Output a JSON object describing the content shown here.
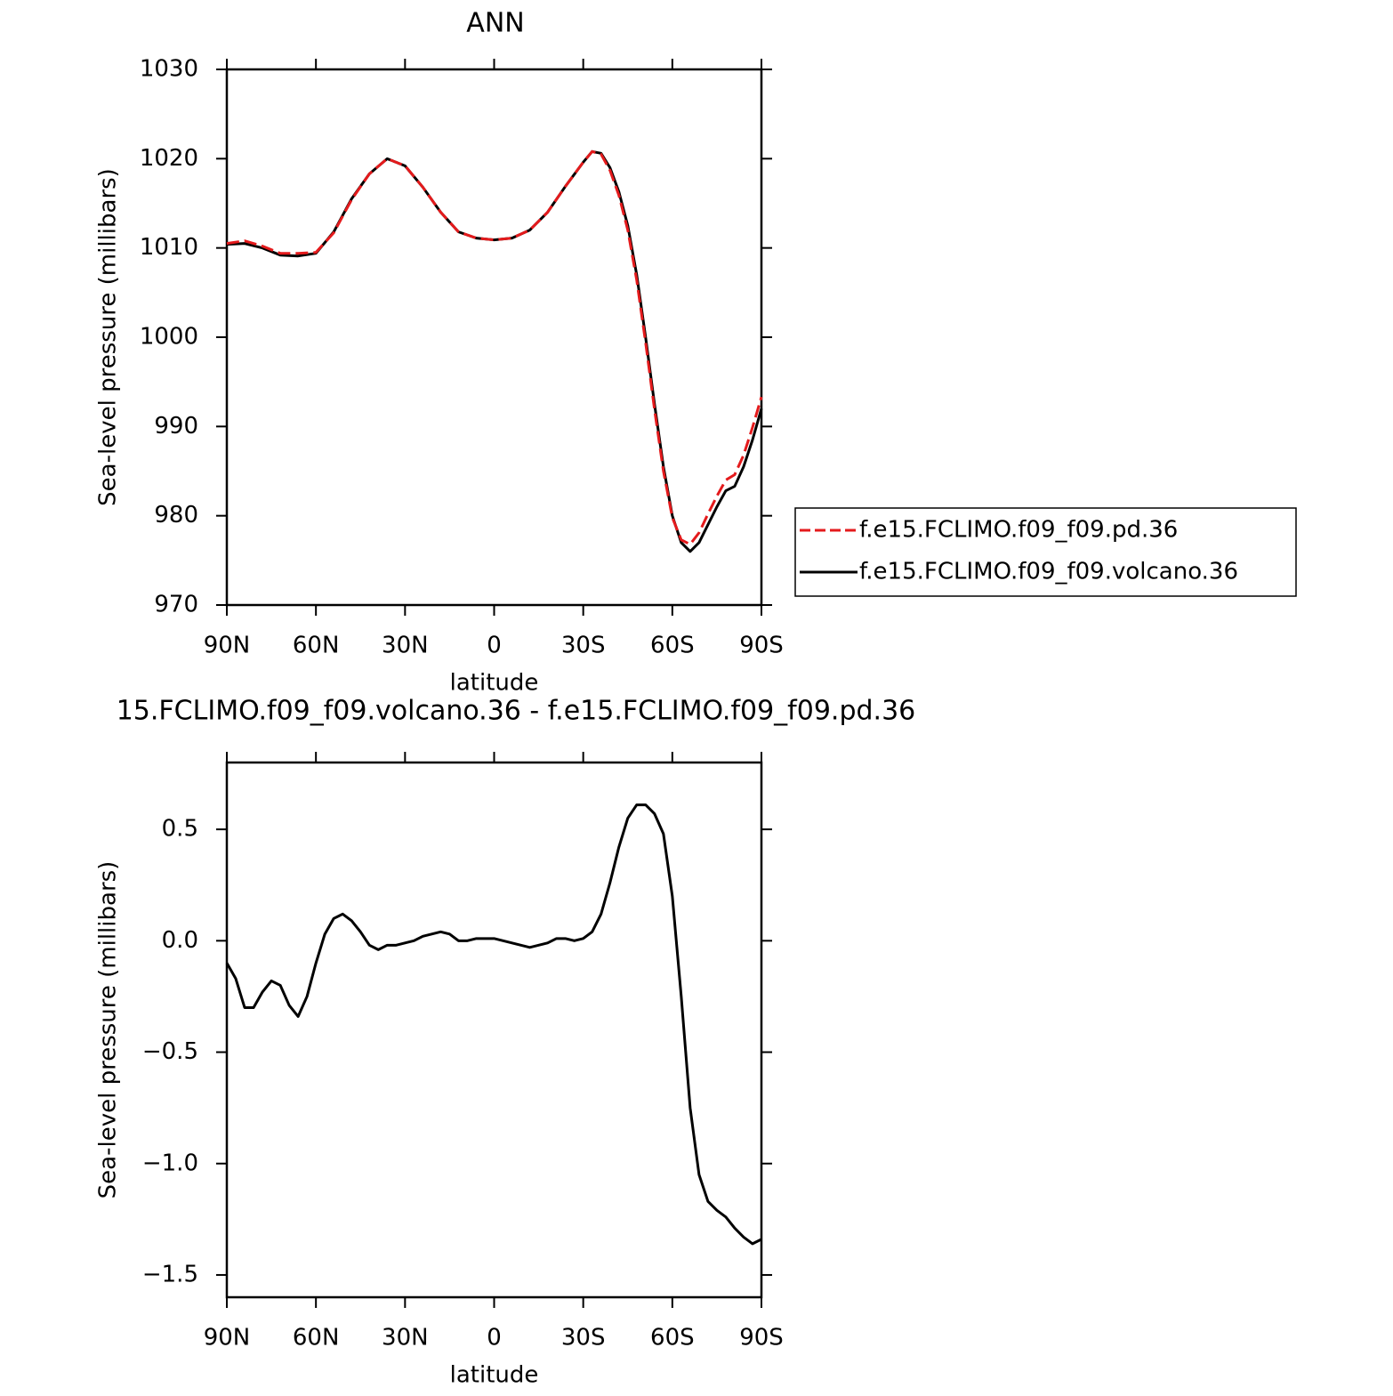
{
  "chart_data": [
    {
      "type": "line",
      "title": "ANN",
      "x_label": "latitude",
      "y_label": "Sea-level pressure (millibars)",
      "x": [
        90,
        84,
        78,
        72,
        66,
        60,
        54,
        48,
        42,
        36,
        30,
        24,
        18,
        12,
        6,
        0,
        -6,
        -12,
        -18,
        -24,
        -30,
        -33,
        -36,
        -39,
        -42,
        -45,
        -48,
        -51,
        -54,
        -57,
        -60,
        -63,
        -66,
        -69,
        -72,
        -75,
        -78,
        -81,
        -84,
        -87,
        -90
      ],
      "series": [
        {
          "name": "f.e15.FCLIMO.f09_f09.pd.36",
          "color": "#e41a1c",
          "linestyle": "dashed",
          "values": [
            1010.5,
            1010.8,
            1010.2,
            1009.4,
            1009.4,
            1009.5,
            1011.7,
            1015.4,
            1018.3,
            1020.0,
            1019.2,
            1016.8,
            1014.0,
            1011.8,
            1011.1,
            1010.9,
            1011.1,
            1012.0,
            1014.0,
            1016.9,
            1019.6,
            1020.8,
            1020.5,
            1018.7,
            1015.9,
            1012.0,
            1006.4,
            999.4,
            991.9,
            985.0,
            979.8,
            977.3,
            976.8,
            978.1,
            980.2,
            982.2,
            984.0,
            984.6,
            986.8,
            989.9,
            993.3
          ]
        },
        {
          "name": "f.e15.FCLIMO.f09_f09.volcano.36",
          "color": "#000000",
          "linestyle": "solid",
          "values": [
            1010.4,
            1010.5,
            1010.0,
            1009.2,
            1009.1,
            1009.4,
            1011.8,
            1015.5,
            1018.3,
            1020.0,
            1019.2,
            1016.8,
            1014.0,
            1011.8,
            1011.1,
            1010.9,
            1011.1,
            1012.0,
            1014.0,
            1016.9,
            1019.6,
            1020.8,
            1020.6,
            1019.0,
            1016.3,
            1012.5,
            1007.0,
            1000.0,
            992.5,
            985.5,
            980.0,
            977.0,
            976.0,
            977.0,
            979.0,
            981.0,
            982.8,
            983.3,
            985.5,
            988.5,
            992.0
          ]
        }
      ],
      "xlim": [
        90,
        -90
      ],
      "xticks": [
        {
          "value": 90,
          "label": "90N"
        },
        {
          "value": 60,
          "label": "60N"
        },
        {
          "value": 30,
          "label": "30N"
        },
        0,
        {
          "value": -30,
          "label": "30S"
        },
        {
          "value": -60,
          "label": "60S"
        },
        {
          "value": -90,
          "label": "90S"
        }
      ],
      "ylim": [
        970,
        1030
      ],
      "yticks": [
        970,
        980,
        990,
        1000,
        1010,
        1020,
        1030
      ],
      "legend": "right"
    },
    {
      "type": "line",
      "title": "15.FCLIMO.f09_f09.volcano.36 - f.e15.FCLIMO.f09_f09.pd.36",
      "x_label": "latitude",
      "y_label": "Sea-level pressure (millibars)",
      "x": [
        90,
        87,
        84,
        81,
        78,
        75,
        72,
        69,
        66,
        63,
        60,
        57,
        54,
        51,
        48,
        45,
        42,
        39,
        36,
        33,
        30,
        27,
        24,
        21,
        18,
        15,
        12,
        9,
        6,
        3,
        0,
        -3,
        -6,
        -9,
        -12,
        -15,
        -18,
        -21,
        -24,
        -27,
        -30,
        -33,
        -36,
        -39,
        -42,
        -45,
        -48,
        -51,
        -54,
        -57,
        -60,
        -63,
        -66,
        -69,
        -72,
        -75,
        -78,
        -81,
        -84,
        -87,
        -90
      ],
      "color": "#000000",
      "values": [
        -0.1,
        -0.17,
        -0.3,
        -0.3,
        -0.23,
        -0.18,
        -0.2,
        -0.29,
        -0.34,
        -0.25,
        -0.1,
        0.03,
        0.1,
        0.12,
        0.09,
        0.04,
        -0.02,
        -0.04,
        -0.02,
        -0.02,
        -0.01,
        0,
        0.02,
        0.03,
        0.04,
        0.03,
        0,
        0,
        0.01,
        0.01,
        0.01,
        0,
        -0.01,
        -0.02,
        -0.03,
        -0.02,
        -0.01,
        0.01,
        0.01,
        0,
        0.01,
        0.04,
        0.12,
        0.26,
        0.42,
        0.55,
        0.61,
        0.61,
        0.57,
        0.48,
        0.2,
        -0.25,
        -0.75,
        -1.05,
        -1.17,
        -1.21,
        -1.24,
        -1.29,
        -1.33,
        -1.36,
        -1.34
      ],
      "xlim": [
        90,
        -90
      ],
      "xticks": [
        {
          "value": 90,
          "label": "90N"
        },
        {
          "value": 60,
          "label": "60N"
        },
        {
          "value": 30,
          "label": "30N"
        },
        0,
        {
          "value": -30,
          "label": "30S"
        },
        {
          "value": -60,
          "label": "60S"
        },
        {
          "value": -90,
          "label": "90S"
        }
      ],
      "ylim": [
        -1.6,
        0.8
      ],
      "yticks": [
        {
          "value": 0.5,
          "label": "0.5"
        },
        {
          "value": 0,
          "label": "0.0"
        },
        {
          "value": -0.5,
          "label": "−0.5"
        },
        {
          "value": -1,
          "label": "−1.0"
        },
        {
          "value": -1.5,
          "label": "−1.5"
        }
      ]
    }
  ]
}
